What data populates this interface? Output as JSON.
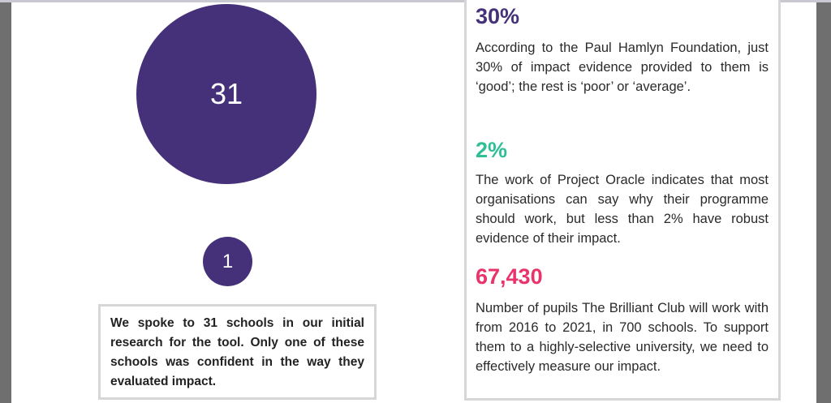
{
  "left": {
    "big_circle_value": "31",
    "small_circle_value": "1",
    "quote": "We spoke to 31 schools in our initial research for the tool. Only one of these schools was confident in the way they evaluated impact."
  },
  "stats": [
    {
      "figure": "30%",
      "color": "#45317a",
      "text": "According to the Paul Hamlyn Foundation, just 30% of impact evidence provided to them is ‘good’; the rest is ‘poor’ or ‘average’."
    },
    {
      "figure": "2%",
      "color": "#2fbf97",
      "text": "The work of Project Oracle indicates that most organisations can say why their programme should work, but less than 2% have robust evidence of their impact."
    },
    {
      "figure": "67,430",
      "color": "#e8336b",
      "text": "Number of pupils The Brilliant Club will work with from 2016 to 2021, in 700 schools. To support them to a highly-selective university, we need to effectively measure our impact."
    }
  ]
}
